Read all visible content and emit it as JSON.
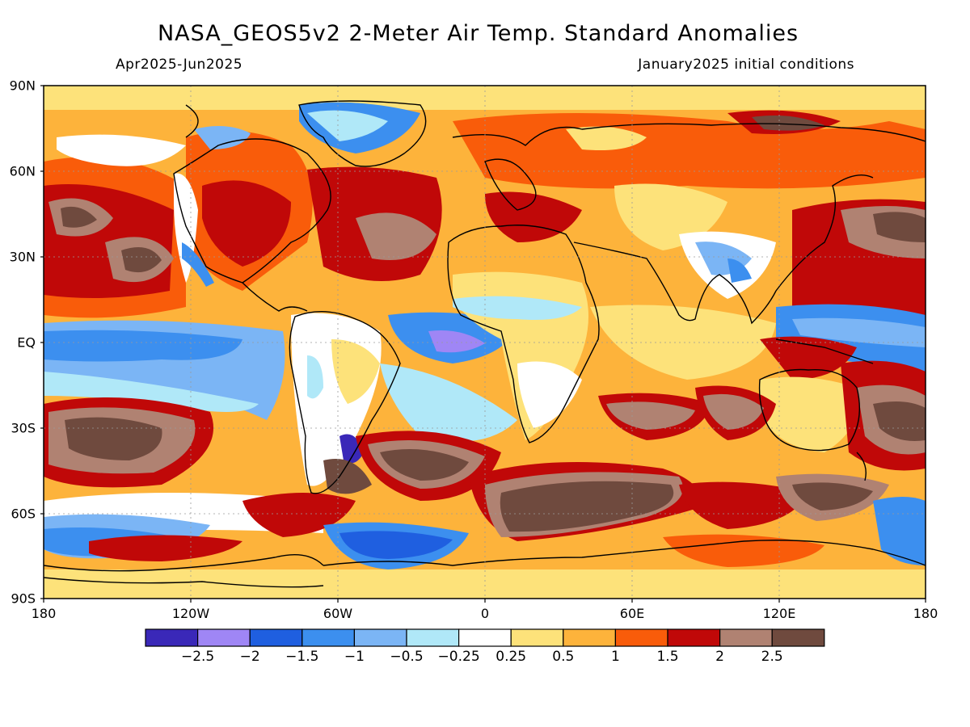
{
  "title": "NASA_GEOS5v2 2-Meter Air Temp. Standard Anomalies",
  "subtitle_left": "Apr2025-Jun2025",
  "subtitle_right": "January2025 initial conditions",
  "lat_labels": [
    "90N",
    "60N",
    "30N",
    "EQ",
    "30S",
    "60S",
    "90S"
  ],
  "lon_labels": [
    "180",
    "120W",
    "60W",
    "0",
    "60E",
    "120E",
    "180"
  ],
  "colorbar": {
    "levels": [
      "-2.5",
      "-2",
      "-1.5",
      "-1",
      "-0.5",
      "-0.25",
      "0.25",
      "0.5",
      "1",
      "1.5",
      "2",
      "2.5"
    ],
    "colors": [
      "#3a28b8",
      "#9f86f5",
      "#1f5fe0",
      "#3c8fef",
      "#7bb5f5",
      "#b0e8f8",
      "#ffffff",
      "#fde27a",
      "#fdb33b",
      "#f95c0a",
      "#c00808",
      "#b08272",
      "#6f4a3e"
    ]
  },
  "colors": {
    "ocean_warm": "#fdb33b",
    "land_line": "#000000",
    "grid": "#9a9a9a"
  }
}
